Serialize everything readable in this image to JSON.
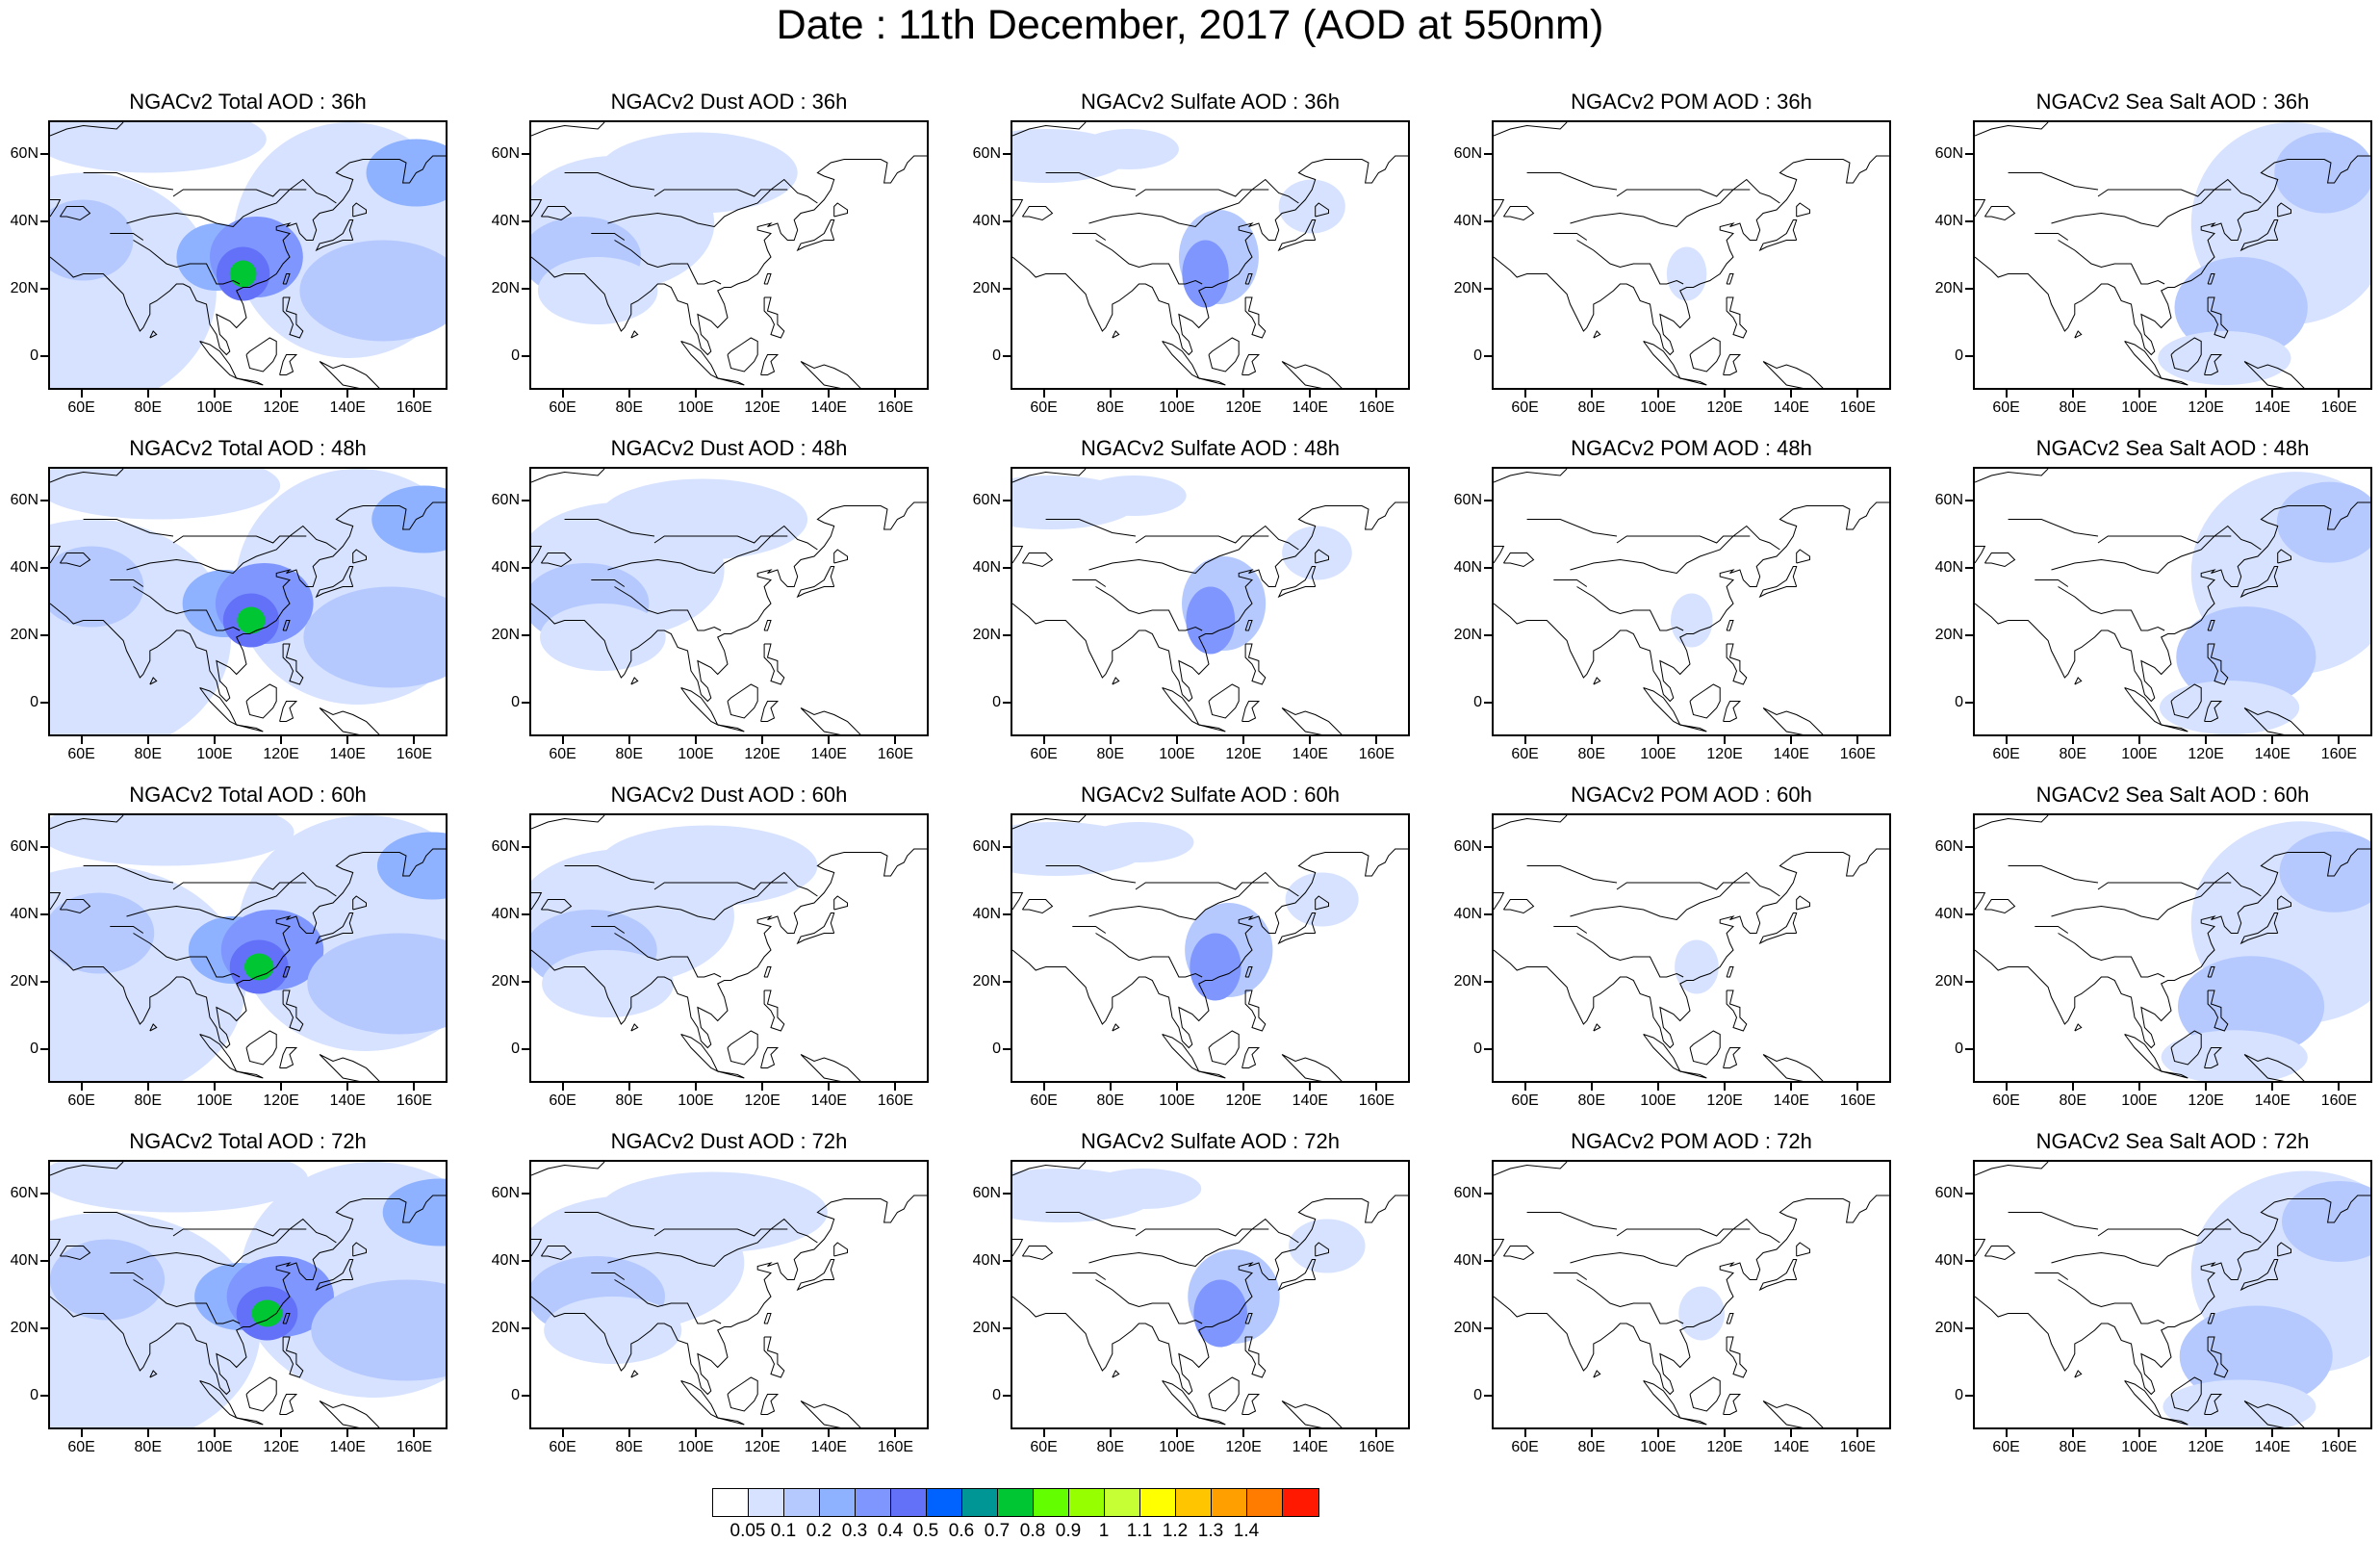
{
  "title": "Date : 11th December, 2017 (AOD at 550nm)",
  "columns": [
    "Total",
    "Dust",
    "Sulfate",
    "POM",
    "Sea Salt"
  ],
  "rows": [
    "36h",
    "48h",
    "60h",
    "72h"
  ],
  "panels": [
    [
      "NGACv2 Total AOD : 36h",
      "NGACv2 Dust AOD : 36h",
      "NGACv2 Sulfate AOD : 36h",
      "NGACv2 POM AOD : 36h",
      "NGACv2 Sea Salt AOD : 36h"
    ],
    [
      "NGACv2 Total AOD : 48h",
      "NGACv2 Dust AOD : 48h",
      "NGACv2 Sulfate AOD : 48h",
      "NGACv2 POM AOD : 48h",
      "NGACv2 Sea Salt AOD : 48h"
    ],
    [
      "NGACv2 Total AOD : 60h",
      "NGACv2 Dust AOD : 60h",
      "NGACv2 Sulfate AOD : 60h",
      "NGACv2 POM AOD : 60h",
      "NGACv2 Sea Salt AOD : 60h"
    ],
    [
      "NGACv2 Total AOD : 72h",
      "NGACv2 Dust AOD : 72h",
      "NGACv2 Sulfate AOD : 72h",
      "NGACv2 POM AOD : 72h",
      "NGACv2 Sea Salt  AOD : 72h"
    ]
  ],
  "axes": {
    "x_ticks": [
      "60E",
      "80E",
      "100E",
      "120E",
      "140E",
      "160E"
    ],
    "x_values": [
      60,
      80,
      100,
      120,
      140,
      160
    ],
    "x_range": [
      50,
      170
    ],
    "y_ticks": [
      "60N",
      "40N",
      "20N",
      "0"
    ],
    "y_values": [
      60,
      40,
      20,
      0
    ],
    "y_range": [
      -10,
      70
    ]
  },
  "colorbar": {
    "labels": [
      "0.05",
      "0.1",
      "0.2",
      "0.3",
      "0.4",
      "0.5",
      "0.6",
      "0.7",
      "0.8",
      "0.9",
      "1",
      "1.1",
      "1.2",
      "1.3",
      "1.4"
    ],
    "colors": [
      "#ffffff",
      "#d6e2ff",
      "#b5c9ff",
      "#8eb2ff",
      "#7f96ff",
      "#6370f8",
      "#0063ff",
      "#009696",
      "#00c633",
      "#63ff00",
      "#96ff00",
      "#c6ff33",
      "#ffff00",
      "#ffc600",
      "#ffa000",
      "#ff7c00",
      "#ff1900"
    ]
  },
  "icons": {
    "coastline": "coastline-outline"
  }
}
